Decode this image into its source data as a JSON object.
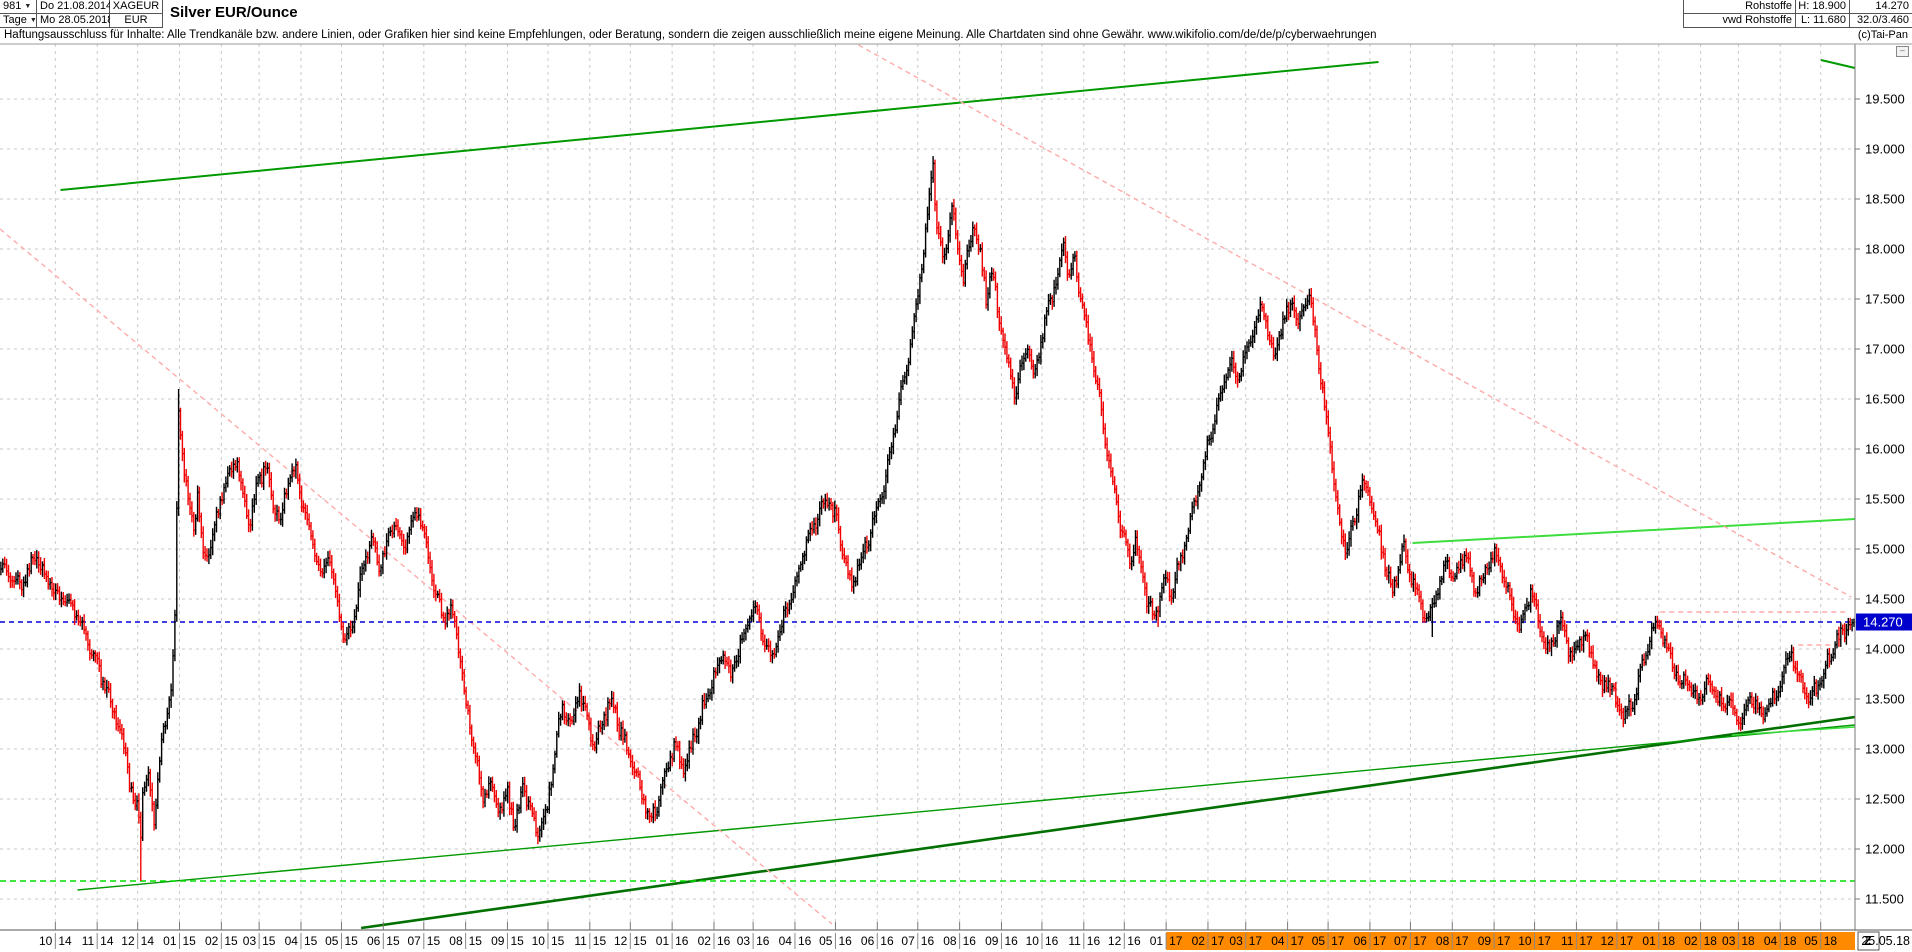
{
  "window": {
    "bars_count": "981",
    "timeframe": "Tage",
    "dropdown_arrow": "▼",
    "date_start": "Do 21.08.2014",
    "date_end": "Mo 28.05.2018",
    "symbol": "XAGEUR",
    "currency": "EUR",
    "title": "Silver EUR/Ounce",
    "category": "Rohstoffe",
    "data_source": "vwd Rohstoffe",
    "high_label": "H: 18.900",
    "low_label": "L: 11.680",
    "last_price_label": "14.270",
    "extra_label": "32.0/3.460",
    "copyright": "(c)Tai-Pan",
    "collapse_glyph": "–"
  },
  "disclaimer": "Haftungsausschluss für Inhalte: Alle Trendkanäle bzw. andere Linien, oder Grafiken hier sind keine Empfehlungen, oder Beratung, sondern die zeigen ausschließlich meine eigene Meinung. Alle Chartdaten sind ohne Gewähr.  www.wikifolio.com/de/de/p/cyberwaehrungen",
  "axis_controls": {
    "zoom_button": "Z",
    "end_date": "25.05.18"
  },
  "chart_data": {
    "type": "bar",
    "subtype": "daily-ohlc-bars",
    "title": "Silver EUR/Ounce",
    "symbol": "XAGEUR",
    "currency": "EUR",
    "timeframe_label": "Tage",
    "bars_total": 981,
    "date_start": "21.08.2014",
    "date_end": "25.05.2018",
    "period_high": 18.9,
    "period_low": 11.68,
    "last_price": 14.27,
    "ylim": [
      11.2,
      20.05
    ],
    "grid": true,
    "y_ticks": [
      "19.500",
      "19.000",
      "18.500",
      "18.000",
      "17.500",
      "17.000",
      "16.500",
      "16.000",
      "15.500",
      "15.000",
      "14.500",
      "14.000",
      "13.500",
      "13.000",
      "12.500",
      "12.000",
      "11.500"
    ],
    "x_months": [
      "10/14",
      "11/14",
      "12/14",
      "01/15",
      "02/15",
      "03/15",
      "04/15",
      "05/15",
      "06/15",
      "07/15",
      "08/15",
      "09/15",
      "10/15",
      "11/15",
      "12/15",
      "01/16",
      "02/16",
      "03/16",
      "04/16",
      "05/16",
      "06/16",
      "07/16",
      "08/16",
      "09/16",
      "10/16",
      "11/16",
      "12/16",
      "01/17",
      "02/17",
      "03/17",
      "04/17",
      "05/17",
      "06/17",
      "07/17",
      "08/17",
      "09/17",
      "10/17",
      "11/17",
      "12/17",
      "01/18",
      "02/18",
      "03/18",
      "04/18",
      "05/18"
    ],
    "x_highlight_from": "01/17",
    "colors": {
      "up": "#000000",
      "down": "#f00000",
      "grid": "#c9c9c9",
      "badge": "#0000cc",
      "badge_text": "#ffffff",
      "axis_highlight": "#ff8a00",
      "last_line": "#0000dd",
      "low_line": "#00dd00",
      "trend_green": "#009900",
      "trend_dark_green": "#007000",
      "trend_light_green": "#3ddd3d",
      "trend_pink": "#ffaaaa"
    },
    "annotations": [
      {
        "name": "ascending-channel-top",
        "color": "#009900",
        "width": 2,
        "dash": null,
        "from": [
          32,
          18.59
        ],
        "to": [
          729,
          19.87
        ]
      },
      {
        "name": "corner-green-segment",
        "color": "#009900",
        "width": 2,
        "dash": null,
        "from": [
          963,
          19.89
        ],
        "to": [
          981,
          19.81
        ]
      },
      {
        "name": "resistance-light-green",
        "color": "#3ddd3d",
        "width": 2,
        "dash": null,
        "from": [
          747,
          15.06
        ],
        "to": [
          981,
          15.3
        ]
      },
      {
        "name": "support-thick-green",
        "color": "#007000",
        "width": 2.6,
        "dash": null,
        "from": [
          191,
          11.21
        ],
        "to": [
          981,
          13.32
        ]
      },
      {
        "name": "support-thin-green",
        "color": "#009900",
        "width": 1.4,
        "dash": null,
        "from": [
          41,
          11.59
        ],
        "to": [
          981,
          13.24
        ]
      },
      {
        "name": "support-short-light-green",
        "color": "#3ddd3d",
        "width": 1.4,
        "dash": null,
        "from": [
          916,
          13.14
        ],
        "to": [
          981,
          13.22
        ]
      },
      {
        "name": "downtrend-pink-left",
        "color": "#ffaaaa",
        "width": 1.4,
        "dash": "5 4",
        "from": [
          0,
          18.2
        ],
        "to": [
          440,
          11.25
        ]
      },
      {
        "name": "downtrend-pink-right",
        "color": "#ffaaaa",
        "width": 1.4,
        "dash": "5 4",
        "from": [
          454,
          20.04
        ],
        "to": [
          979,
          14.52
        ]
      },
      {
        "name": "pink-horizontal-jan18",
        "color": "#ffaaaa",
        "width": 1.4,
        "dash": "5 4",
        "from": [
          878,
          14.37
        ],
        "to": [
          978,
          14.37
        ]
      },
      {
        "name": "pink-horizontal-apr18",
        "color": "#ffaaaa",
        "width": 1.4,
        "dash": "5 4",
        "from": [
          951,
          14.04
        ],
        "to": [
          968,
          14.04
        ]
      },
      {
        "name": "last-price-blue-dashed",
        "color": "#0000dd",
        "width": 1.4,
        "dash": "5 4",
        "from": [
          0,
          14.27
        ],
        "to": [
          981,
          14.27
        ]
      },
      {
        "name": "period-low-green-dashed",
        "color": "#00dd00",
        "width": 1.6,
        "dash": "6 4",
        "from": [
          0,
          11.68
        ],
        "to": [
          981,
          11.68
        ]
      }
    ],
    "special_bars": [
      {
        "day": 74,
        "low": 11.68
      },
      {
        "day": 493,
        "high": 18.9
      },
      {
        "day": 612,
        "low": 14.22
      },
      {
        "day": 757,
        "low": 14.12
      },
      {
        "day": 94,
        "high": 16.6
      }
    ],
    "close_anchors": [
      [
        0,
        14.8
      ],
      [
        10,
        14.62
      ],
      [
        19,
        14.93
      ],
      [
        24,
        14.7
      ],
      [
        31,
        14.52
      ],
      [
        42,
        14.3
      ],
      [
        53,
        13.72
      ],
      [
        61,
        13.3
      ],
      [
        66,
        12.9
      ],
      [
        70,
        12.5
      ],
      [
        73,
        12.35
      ],
      [
        74,
        12.1
      ],
      [
        75,
        12.55
      ],
      [
        78,
        12.7
      ],
      [
        81,
        12.3
      ],
      [
        85,
        13.05
      ],
      [
        90,
        13.6
      ],
      [
        92,
        14.3
      ],
      [
        94,
        16.4
      ],
      [
        96,
        16.0
      ],
      [
        99,
        15.45
      ],
      [
        102,
        15.2
      ],
      [
        104,
        15.58
      ],
      [
        107,
        14.92
      ],
      [
        111,
        15.05
      ],
      [
        116,
        15.48
      ],
      [
        122,
        15.8
      ],
      [
        125,
        15.88
      ],
      [
        129,
        15.42
      ],
      [
        132,
        15.28
      ],
      [
        136,
        15.68
      ],
      [
        140,
        15.83
      ],
      [
        144,
        15.45
      ],
      [
        148,
        15.28
      ],
      [
        152,
        15.72
      ],
      [
        156,
        15.8
      ],
      [
        160,
        15.42
      ],
      [
        165,
        15.08
      ],
      [
        169,
        14.68
      ],
      [
        173,
        14.92
      ],
      [
        178,
        14.48
      ],
      [
        182,
        14.05
      ],
      [
        187,
        14.32
      ],
      [
        191,
        14.78
      ],
      [
        196,
        15.12
      ],
      [
        200,
        14.82
      ],
      [
        204,
        15.02
      ],
      [
        208,
        15.28
      ],
      [
        213,
        15.02
      ],
      [
        217,
        15.28
      ],
      [
        221,
        15.4
      ],
      [
        225,
        14.98
      ],
      [
        230,
        14.58
      ],
      [
        234,
        14.28
      ],
      [
        238,
        14.42
      ],
      [
        242,
        14.02
      ],
      [
        246,
        13.42
      ],
      [
        251,
        12.92
      ],
      [
        255,
        12.5
      ],
      [
        259,
        12.68
      ],
      [
        263,
        12.38
      ],
      [
        268,
        12.55
      ],
      [
        272,
        12.22
      ],
      [
        276,
        12.62
      ],
      [
        280,
        12.38
      ],
      [
        284,
        12.12
      ],
      [
        289,
        12.42
      ],
      [
        293,
        13.0
      ],
      [
        297,
        13.45
      ],
      [
        301,
        13.22
      ],
      [
        306,
        13.58
      ],
      [
        310,
        13.28
      ],
      [
        314,
        13.02
      ],
      [
        318,
        13.28
      ],
      [
        323,
        13.52
      ],
      [
        327,
        13.22
      ],
      [
        331,
        13.02
      ],
      [
        335,
        12.78
      ],
      [
        340,
        12.48
      ],
      [
        344,
        12.28
      ],
      [
        348,
        12.52
      ],
      [
        352,
        12.82
      ],
      [
        356,
        13.02
      ],
      [
        361,
        12.82
      ],
      [
        365,
        13.02
      ],
      [
        369,
        13.28
      ],
      [
        373,
        13.52
      ],
      [
        378,
        13.78
      ],
      [
        382,
        13.98
      ],
      [
        386,
        13.72
      ],
      [
        390,
        13.98
      ],
      [
        394,
        14.22
      ],
      [
        399,
        14.42
      ],
      [
        403,
        14.12
      ],
      [
        407,
        13.92
      ],
      [
        411,
        14.12
      ],
      [
        416,
        14.42
      ],
      [
        420,
        14.68
      ],
      [
        424,
        14.92
      ],
      [
        428,
        15.15
      ],
      [
        433,
        15.35
      ],
      [
        437,
        15.5
      ],
      [
        442,
        15.28
      ],
      [
        446,
        14.88
      ],
      [
        450,
        14.62
      ],
      [
        454,
        14.88
      ],
      [
        459,
        15.12
      ],
      [
        463,
        15.38
      ],
      [
        467,
        15.62
      ],
      [
        471,
        16.02
      ],
      [
        475,
        16.48
      ],
      [
        480,
        16.92
      ],
      [
        484,
        17.42
      ],
      [
        488,
        17.98
      ],
      [
        491,
        18.52
      ],
      [
        493,
        18.85
      ],
      [
        495,
        18.22
      ],
      [
        498,
        17.88
      ],
      [
        501,
        18.18
      ],
      [
        503,
        18.42
      ],
      [
        506,
        18.02
      ],
      [
        509,
        17.68
      ],
      [
        512,
        18.02
      ],
      [
        515,
        18.28
      ],
      [
        518,
        17.92
      ],
      [
        521,
        17.52
      ],
      [
        524,
        17.78
      ],
      [
        527,
        17.42
      ],
      [
        530,
        17.08
      ],
      [
        533,
        16.78
      ],
      [
        537,
        16.52
      ],
      [
        540,
        16.88
      ],
      [
        543,
        17.08
      ],
      [
        546,
        16.72
      ],
      [
        549,
        16.98
      ],
      [
        552,
        17.28
      ],
      [
        556,
        17.52
      ],
      [
        559,
        17.78
      ],
      [
        562,
        18.02
      ],
      [
        565,
        17.72
      ],
      [
        568,
        17.88
      ],
      [
        571,
        17.52
      ],
      [
        574,
        17.18
      ],
      [
        578,
        16.82
      ],
      [
        581,
        16.52
      ],
      [
        584,
        16.12
      ],
      [
        587,
        15.78
      ],
      [
        590,
        15.42
      ],
      [
        594,
        15.12
      ],
      [
        597,
        14.88
      ],
      [
        600,
        15.08
      ],
      [
        603,
        14.78
      ],
      [
        606,
        14.52
      ],
      [
        610,
        14.28
      ],
      [
        613,
        14.52
      ],
      [
        616,
        14.72
      ],
      [
        619,
        14.52
      ],
      [
        622,
        14.78
      ],
      [
        626,
        15.02
      ],
      [
        629,
        15.28
      ],
      [
        632,
        15.52
      ],
      [
        635,
        15.78
      ],
      [
        638,
        16.02
      ],
      [
        641,
        16.28
      ],
      [
        645,
        16.52
      ],
      [
        648,
        16.78
      ],
      [
        651,
        16.92
      ],
      [
        654,
        16.68
      ],
      [
        657,
        16.88
      ],
      [
        660,
        17.08
      ],
      [
        664,
        17.28
      ],
      [
        667,
        17.42
      ],
      [
        670,
        17.18
      ],
      [
        673,
        16.92
      ],
      [
        676,
        17.12
      ],
      [
        679,
        17.32
      ],
      [
        683,
        17.48
      ],
      [
        686,
        17.22
      ],
      [
        689,
        17.42
      ],
      [
        692,
        17.52
      ],
      [
        695,
        17.18
      ],
      [
        698,
        16.68
      ],
      [
        702,
        16.18
      ],
      [
        705,
        15.68
      ],
      [
        708,
        15.28
      ],
      [
        711,
        14.98
      ],
      [
        714,
        15.18
      ],
      [
        717,
        15.42
      ],
      [
        720,
        15.68
      ],
      [
        724,
        15.52
      ],
      [
        727,
        15.28
      ],
      [
        730,
        15.02
      ],
      [
        733,
        14.78
      ],
      [
        736,
        14.58
      ],
      [
        739,
        14.82
      ],
      [
        742,
        15.02
      ],
      [
        745,
        14.78
      ],
      [
        749,
        14.58
      ],
      [
        752,
        14.38
      ],
      [
        755,
        14.3
      ],
      [
        758,
        14.52
      ],
      [
        762,
        14.72
      ],
      [
        765,
        14.88
      ],
      [
        768,
        14.68
      ],
      [
        771,
        14.82
      ],
      [
        774,
        14.98
      ],
      [
        777,
        14.78
      ],
      [
        780,
        14.58
      ],
      [
        784,
        14.72
      ],
      [
        787,
        14.88
      ],
      [
        790,
        14.98
      ],
      [
        793,
        14.82
      ],
      [
        796,
        14.62
      ],
      [
        799,
        14.42
      ],
      [
        803,
        14.22
      ],
      [
        806,
        14.42
      ],
      [
        809,
        14.58
      ],
      [
        812,
        14.38
      ],
      [
        815,
        14.18
      ],
      [
        818,
        13.98
      ],
      [
        821,
        14.12
      ],
      [
        825,
        14.28
      ],
      [
        828,
        14.08
      ],
      [
        831,
        13.88
      ],
      [
        834,
        14.02
      ],
      [
        837,
        14.18
      ],
      [
        840,
        13.98
      ],
      [
        844,
        13.78
      ],
      [
        847,
        13.58
      ],
      [
        850,
        13.72
      ],
      [
        853,
        13.52
      ],
      [
        856,
        13.38
      ],
      [
        859,
        13.32
      ],
      [
        863,
        13.48
      ],
      [
        866,
        13.68
      ],
      [
        869,
        13.88
      ],
      [
        872,
        14.08
      ],
      [
        875,
        14.28
      ],
      [
        878,
        14.18
      ],
      [
        881,
        13.98
      ],
      [
        885,
        13.82
      ],
      [
        888,
        13.62
      ],
      [
        891,
        13.72
      ],
      [
        894,
        13.58
      ],
      [
        897,
        13.48
      ],
      [
        900,
        13.58
      ],
      [
        904,
        13.68
      ],
      [
        907,
        13.52
      ],
      [
        910,
        13.42
      ],
      [
        913,
        13.52
      ],
      [
        916,
        13.38
      ],
      [
        919,
        13.28
      ],
      [
        923,
        13.42
      ],
      [
        926,
        13.52
      ],
      [
        929,
        13.42
      ],
      [
        932,
        13.32
      ],
      [
        935,
        13.42
      ],
      [
        938,
        13.52
      ],
      [
        941,
        13.68
      ],
      [
        944,
        13.88
      ],
      [
        947,
        13.98
      ],
      [
        950,
        13.78
      ],
      [
        953,
        13.58
      ],
      [
        956,
        13.48
      ],
      [
        959,
        13.58
      ],
      [
        962,
        13.68
      ],
      [
        965,
        13.82
      ],
      [
        968,
        13.98
      ],
      [
        971,
        14.08
      ],
      [
        975,
        14.18
      ],
      [
        980,
        14.27
      ]
    ]
  }
}
